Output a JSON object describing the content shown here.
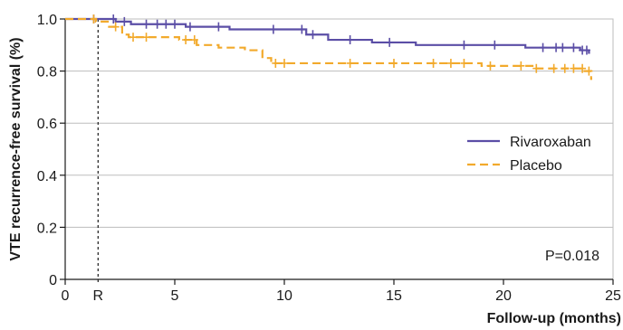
{
  "chart_data": {
    "type": "line",
    "xlabel": "Follow-up (months)",
    "ylabel": "VTE recurrence-free survival (%)",
    "xlim": [
      0,
      25
    ],
    "ylim": [
      0,
      1.0
    ],
    "x_ticks": [
      "0",
      "5",
      "10",
      "15",
      "20",
      "25"
    ],
    "x_tick_values": [
      0,
      5,
      10,
      15,
      20,
      25
    ],
    "y_ticks": [
      "0",
      "0.2",
      "0.4",
      "0.6",
      "0.8",
      "1.0"
    ],
    "y_tick_values": [
      0,
      0.2,
      0.4,
      0.6,
      0.8,
      1.0
    ],
    "grid": "horizontal",
    "legend_position": "right",
    "reference_line": {
      "x": 1.5,
      "label": "R",
      "style": "dotted"
    },
    "annotation": "P=0.018",
    "series": [
      {
        "name": "Rivaroxaban",
        "color": "#5b4ea6",
        "dash": "solid",
        "steps": [
          [
            0,
            1.0
          ],
          [
            2.3,
            0.99
          ],
          [
            3.0,
            0.98
          ],
          [
            5.5,
            0.97
          ],
          [
            7.5,
            0.96
          ],
          [
            11.0,
            0.94
          ],
          [
            12.0,
            0.92
          ],
          [
            14.0,
            0.91
          ],
          [
            16.0,
            0.9
          ],
          [
            21.0,
            0.89
          ],
          [
            23.5,
            0.88
          ],
          [
            23.9,
            0.87
          ]
        ],
        "censor_x": [
          1.3,
          2.2,
          2.7,
          3.7,
          4.2,
          4.6,
          5.0,
          5.7,
          7.0,
          9.5,
          10.8,
          11.3,
          13.0,
          14.8,
          18.2,
          19.6,
          21.8,
          22.4,
          22.7,
          23.2,
          23.6,
          23.8
        ]
      },
      {
        "name": "Placebo",
        "color": "#f2aa2c",
        "dash": "dashed",
        "steps": [
          [
            0,
            1.0
          ],
          [
            1.4,
            0.99
          ],
          [
            2.0,
            0.97
          ],
          [
            2.6,
            0.94
          ],
          [
            2.9,
            0.93
          ],
          [
            5.2,
            0.92
          ],
          [
            6.0,
            0.9
          ],
          [
            7.0,
            0.89
          ],
          [
            8.2,
            0.88
          ],
          [
            9.0,
            0.85
          ],
          [
            9.4,
            0.83
          ],
          [
            19.0,
            0.82
          ],
          [
            21.5,
            0.81
          ],
          [
            23.7,
            0.8
          ],
          [
            24.0,
            0.77
          ]
        ],
        "censor_x": [
          1.3,
          2.3,
          3.1,
          3.7,
          5.5,
          5.9,
          9.6,
          10.0,
          13.0,
          15.0,
          16.8,
          17.6,
          18.2,
          19.4,
          20.8,
          21.5,
          22.3,
          22.8,
          23.2,
          23.6,
          23.9
        ]
      }
    ]
  }
}
